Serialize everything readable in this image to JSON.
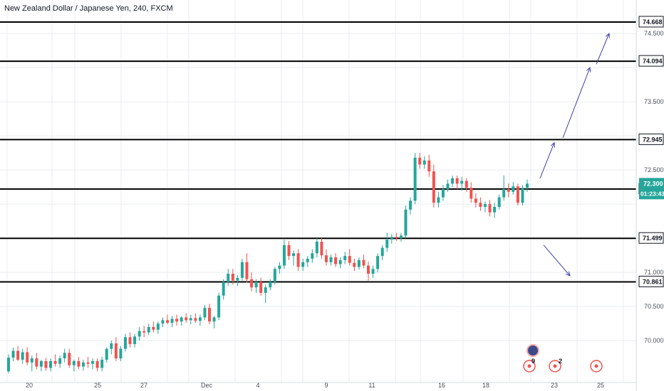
{
  "title": "New Zealand Dollar / Japanese Yen, 240, FXCM",
  "colors": {
    "up": "#26a69a",
    "down": "#ef5350",
    "grid": "#e9ecf1",
    "line": "#000000",
    "arrow": "#3d3ea8",
    "badge": "#26a69a"
  },
  "chart_data": {
    "type": "candlestick",
    "title": "New Zealand Dollar / Japanese Yen, 240, FXCM",
    "ylim": [
      69.55,
      74.85
    ],
    "y_ticks": [
      "74.500",
      "73.500",
      "72.500",
      "71.000",
      "70.500",
      "70.000"
    ],
    "x_ticks": [
      "20",
      "25",
      "27",
      "Dec",
      "4",
      "9",
      "11",
      "16",
      "18",
      "23",
      "25"
    ],
    "horizontal_levels": [
      "74.668",
      "74.094",
      "72.945",
      "72.222",
      "71.499",
      "70.861"
    ],
    "last_price": "72.300",
    "countdown": "01:23:43",
    "candles": [
      [
        69.55,
        69.8,
        69.52,
        69.75
      ],
      [
        69.75,
        69.9,
        69.7,
        69.85
      ],
      [
        69.85,
        69.92,
        69.7,
        69.72
      ],
      [
        69.72,
        69.88,
        69.66,
        69.83
      ],
      [
        69.83,
        69.9,
        69.64,
        69.68
      ],
      [
        69.68,
        69.78,
        69.55,
        69.74
      ],
      [
        69.74,
        69.82,
        69.58,
        69.62
      ],
      [
        69.62,
        69.72,
        69.55,
        69.7
      ],
      [
        69.7,
        69.75,
        69.56,
        69.6
      ],
      [
        69.6,
        69.74,
        69.55,
        69.7
      ],
      [
        69.7,
        69.8,
        69.62,
        69.66
      ],
      [
        69.66,
        69.78,
        69.6,
        69.74
      ],
      [
        69.74,
        69.88,
        69.68,
        69.82
      ],
      [
        69.82,
        69.88,
        69.6,
        69.64
      ],
      [
        69.64,
        69.72,
        69.55,
        69.7
      ],
      [
        69.7,
        69.76,
        69.58,
        69.62
      ],
      [
        69.62,
        69.72,
        69.56,
        69.68
      ],
      [
        69.68,
        69.76,
        69.6,
        69.66
      ],
      [
        69.66,
        69.74,
        69.58,
        69.7
      ],
      [
        69.7,
        69.74,
        69.55,
        69.6
      ],
      [
        69.6,
        69.76,
        69.55,
        69.72
      ],
      [
        69.72,
        69.9,
        69.68,
        69.88
      ],
      [
        69.88,
        70.0,
        69.8,
        69.96
      ],
      [
        69.96,
        70.05,
        69.7,
        69.74
      ],
      [
        69.74,
        69.92,
        69.7,
        69.88
      ],
      [
        69.88,
        70.1,
        69.84,
        70.05
      ],
      [
        70.05,
        70.12,
        69.9,
        69.95
      ],
      [
        69.95,
        70.1,
        69.9,
        70.06
      ],
      [
        70.06,
        70.2,
        70.0,
        70.14
      ],
      [
        70.14,
        70.22,
        70.05,
        70.12
      ],
      [
        70.12,
        70.25,
        70.08,
        70.2
      ],
      [
        70.2,
        70.28,
        70.12,
        70.16
      ],
      [
        70.16,
        70.28,
        70.1,
        70.25
      ],
      [
        70.25,
        70.34,
        70.2,
        70.3
      ],
      [
        70.3,
        70.38,
        70.24,
        70.26
      ],
      [
        70.26,
        70.36,
        70.2,
        70.32
      ],
      [
        70.32,
        70.38,
        70.22,
        70.28
      ],
      [
        70.28,
        70.36,
        70.22,
        70.34
      ],
      [
        70.34,
        70.4,
        70.26,
        70.3
      ],
      [
        70.3,
        70.38,
        70.24,
        70.33
      ],
      [
        70.33,
        70.4,
        70.26,
        70.29
      ],
      [
        70.29,
        70.38,
        70.22,
        70.34
      ],
      [
        70.34,
        70.52,
        70.3,
        70.48
      ],
      [
        70.48,
        70.54,
        70.24,
        70.28
      ],
      [
        70.28,
        70.36,
        70.18,
        70.34
      ],
      [
        70.34,
        70.7,
        70.3,
        70.66
      ],
      [
        70.66,
        70.9,
        70.6,
        70.86
      ],
      [
        70.86,
        71.05,
        70.8,
        70.98
      ],
      [
        70.98,
        71.05,
        70.82,
        70.88
      ],
      [
        70.88,
        70.96,
        70.8,
        70.92
      ],
      [
        70.92,
        71.2,
        70.88,
        71.15
      ],
      [
        71.15,
        71.28,
        70.85,
        70.9
      ],
      [
        70.9,
        71.0,
        70.72,
        70.78
      ],
      [
        70.78,
        70.9,
        70.7,
        70.86
      ],
      [
        70.86,
        70.92,
        70.66,
        70.7
      ],
      [
        70.7,
        70.82,
        70.55,
        70.78
      ],
      [
        70.78,
        70.9,
        70.74,
        70.86
      ],
      [
        70.86,
        71.08,
        70.82,
        71.05
      ],
      [
        71.05,
        71.15,
        70.98,
        71.1
      ],
      [
        71.1,
        71.48,
        71.05,
        71.4
      ],
      [
        71.4,
        71.46,
        71.18,
        71.24
      ],
      [
        71.24,
        71.32,
        71.1,
        71.28
      ],
      [
        71.28,
        71.34,
        71.02,
        71.08
      ],
      [
        71.08,
        71.2,
        71.02,
        71.15
      ],
      [
        71.15,
        71.24,
        71.08,
        71.2
      ],
      [
        71.2,
        71.34,
        71.14,
        71.28
      ],
      [
        71.28,
        71.5,
        71.22,
        71.45
      ],
      [
        71.45,
        71.5,
        71.2,
        71.25
      ],
      [
        71.25,
        71.34,
        71.1,
        71.15
      ],
      [
        71.15,
        71.26,
        71.1,
        71.22
      ],
      [
        71.22,
        71.28,
        71.08,
        71.12
      ],
      [
        71.12,
        71.22,
        71.06,
        71.18
      ],
      [
        71.18,
        71.3,
        71.12,
        71.24
      ],
      [
        71.24,
        71.34,
        71.1,
        71.14
      ],
      [
        71.14,
        71.2,
        71.02,
        71.08
      ],
      [
        71.08,
        71.22,
        71.04,
        71.18
      ],
      [
        71.18,
        71.26,
        71.06,
        71.1
      ],
      [
        71.1,
        71.16,
        70.88,
        70.98
      ],
      [
        70.98,
        71.1,
        70.92,
        71.05
      ],
      [
        71.05,
        71.28,
        71.0,
        71.24
      ],
      [
        71.24,
        71.4,
        71.18,
        71.36
      ],
      [
        71.36,
        71.58,
        71.3,
        71.48
      ],
      [
        71.48,
        71.56,
        71.42,
        71.52
      ],
      [
        71.52,
        71.58,
        71.46,
        71.5
      ],
      [
        71.5,
        71.58,
        71.45,
        71.54
      ],
      [
        71.54,
        71.98,
        71.5,
        71.92
      ],
      [
        71.92,
        72.1,
        71.85,
        72.05
      ],
      [
        72.05,
        72.75,
        72.0,
        72.68
      ],
      [
        72.68,
        72.75,
        72.52,
        72.58
      ],
      [
        72.58,
        72.7,
        72.52,
        72.64
      ],
      [
        72.64,
        72.72,
        72.4,
        72.48
      ],
      [
        72.48,
        72.58,
        71.95,
        72.02
      ],
      [
        72.02,
        72.18,
        71.95,
        72.1
      ],
      [
        72.1,
        72.28,
        72.05,
        72.22
      ],
      [
        72.22,
        72.36,
        72.18,
        72.3
      ],
      [
        72.3,
        72.42,
        72.25,
        72.38
      ],
      [
        72.38,
        72.42,
        72.22,
        72.3
      ],
      [
        72.3,
        72.4,
        72.2,
        72.34
      ],
      [
        72.34,
        72.38,
        72.18,
        72.24
      ],
      [
        72.24,
        72.32,
        72.02,
        72.08
      ],
      [
        72.08,
        72.16,
        71.95,
        72.02
      ],
      [
        72.02,
        72.1,
        71.9,
        71.96
      ],
      [
        71.96,
        72.04,
        71.88,
        72.0
      ],
      [
        72.0,
        72.06,
        71.82,
        71.88
      ],
      [
        71.88,
        72.02,
        71.8,
        71.96
      ],
      [
        71.96,
        72.14,
        71.92,
        72.1
      ],
      [
        72.1,
        72.42,
        72.05,
        72.22
      ],
      [
        72.22,
        72.3,
        72.1,
        72.18
      ],
      [
        72.18,
        72.32,
        72.14,
        72.26
      ],
      [
        72.26,
        72.3,
        71.98,
        72.02
      ],
      [
        72.02,
        72.28,
        71.98,
        72.24
      ],
      [
        72.24,
        72.36,
        72.18,
        72.3
      ]
    ]
  },
  "annotations": {
    "arrow_targets": [
      "74.500",
      "74.000",
      "72.900",
      "70.950"
    ]
  },
  "badges": [
    {
      "label": "9"
    },
    {
      "label": "2"
    }
  ]
}
